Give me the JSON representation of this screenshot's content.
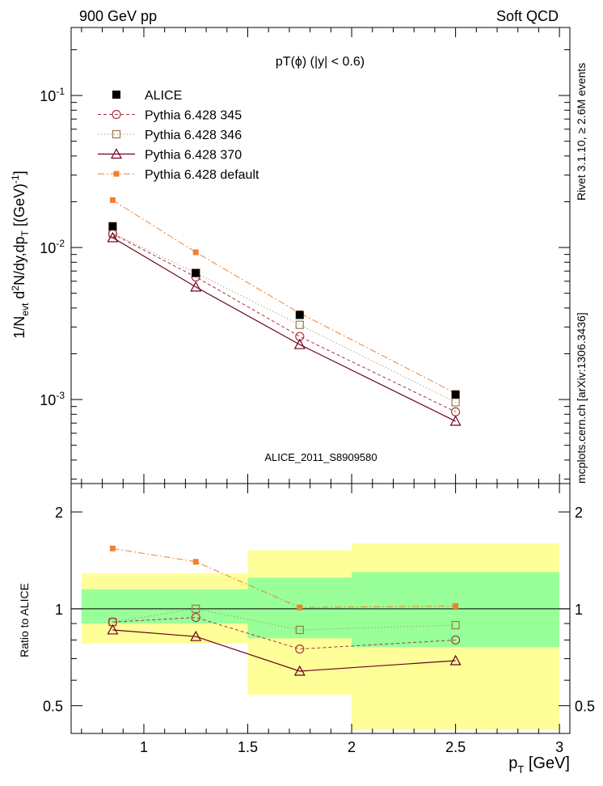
{
  "header": {
    "left_label": "900 GeV pp",
    "right_label": "Soft QCD",
    "plot_title": "pT(ϕ) (|y| < 0.6)",
    "analysis_id": "ALICE_2011_S8909580",
    "side_label_top": "Rivet 3.1.10, ≥ 2.6M events",
    "side_label_bottom": "mcplots.cern.ch [arXiv:1306.3436]"
  },
  "colors": {
    "alice": "#000000",
    "p345": "#b03040",
    "p346": "#9b7a45",
    "p370": "#6b0020",
    "pdefault": "#f28030",
    "band_inner": "#99ff99",
    "band_outer": "#ffff99"
  },
  "chart_data": [
    {
      "type": "line",
      "ylog": true,
      "xlim": [
        0.65,
        3.05
      ],
      "ylim": [
        0.00028,
        0.28
      ],
      "ylabel": "1/N_evt d²N/dy,dp_T [(GeV)⁻¹]",
      "ytick_labels": [
        "10^-1",
        "10^-2",
        "10^-3"
      ],
      "x": [
        0.85,
        1.25,
        1.75,
        2.5
      ],
      "legend_position": "top-left",
      "series": [
        {
          "name": "ALICE",
          "key": "alice",
          "values": [
            0.0138,
            0.0068,
            0.0036,
            0.00108
          ],
          "marker": "filled-square"
        },
        {
          "name": "Pythia 6.428 345",
          "key": "p345",
          "values": [
            0.0123,
            0.0064,
            0.0026,
            0.00083
          ],
          "marker": "open-circle"
        },
        {
          "name": "Pythia 6.428 346",
          "key": "p346",
          "values": [
            0.0124,
            0.0068,
            0.0031,
            0.00096
          ],
          "marker": "open-square"
        },
        {
          "name": "Pythia 6.428 370",
          "key": "p370",
          "values": [
            0.0116,
            0.0055,
            0.0023,
            0.00072
          ],
          "marker": "open-triangle"
        },
        {
          "name": "Pythia 6.428 default",
          "key": "pdefault",
          "values": [
            0.0205,
            0.0093,
            0.0037,
            0.0011
          ],
          "marker": "small-filled-square"
        }
      ]
    },
    {
      "type": "line",
      "ylog": true,
      "xlim": [
        0.65,
        3.05
      ],
      "ylim": [
        0.41,
        2.45
      ],
      "ylabel": "Ratio to ALICE",
      "xlabel": "p_T [GeV]",
      "ytick_labels": [
        "0.5",
        "1",
        "2"
      ],
      "xtick_labels": [
        "1",
        "1.5",
        "2",
        "2.5",
        "3"
      ],
      "x": [
        0.85,
        1.25,
        1.75,
        2.5
      ],
      "bands": {
        "bins": [
          [
            0.7,
            1.5
          ],
          [
            1.5,
            2.0
          ],
          [
            2.0,
            3.0
          ]
        ],
        "inner": [
          [
            0.9,
            1.15
          ],
          [
            0.81,
            1.25
          ],
          [
            0.76,
            1.3
          ]
        ],
        "outer": [
          [
            0.78,
            1.29
          ],
          [
            0.54,
            1.52
          ],
          [
            0.42,
            1.6
          ]
        ]
      },
      "series": [
        {
          "name": "Pythia 6.428 345",
          "key": "p345",
          "values": [
            0.91,
            0.94,
            0.75,
            0.8
          ]
        },
        {
          "name": "Pythia 6.428 346",
          "key": "p346",
          "values": [
            0.91,
            1.0,
            0.86,
            0.89
          ]
        },
        {
          "name": "Pythia 6.428 370",
          "key": "p370",
          "values": [
            0.86,
            0.82,
            0.64,
            0.69
          ]
        },
        {
          "name": "Pythia 6.428 default",
          "key": "pdefault",
          "values": [
            1.54,
            1.4,
            1.01,
            1.02
          ]
        }
      ]
    }
  ]
}
